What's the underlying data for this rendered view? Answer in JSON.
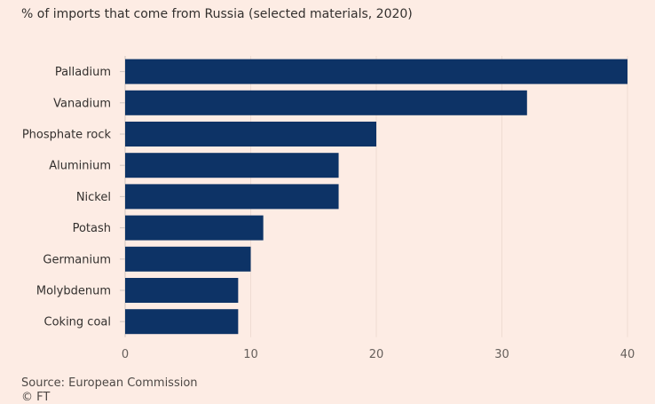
{
  "chart_data": {
    "type": "bar",
    "orientation": "horizontal",
    "title": "% of imports that come from Russia (selected materials, 2020)",
    "categories": [
      "Palladium",
      "Vanadium",
      "Phosphate rock",
      "Aluminium",
      "Nickel",
      "Potash",
      "Germanium",
      "Molybdenum",
      "Coking coal"
    ],
    "values": [
      40,
      32,
      20,
      17,
      17,
      11,
      10,
      9,
      9
    ],
    "xlim": [
      0,
      40
    ],
    "xticks": [
      0,
      10,
      20,
      30,
      40
    ],
    "grid": true,
    "bar_color": "#0d3366",
    "background": "#fdece4",
    "source": "Source: European Commission",
    "copyright": "© FT"
  }
}
